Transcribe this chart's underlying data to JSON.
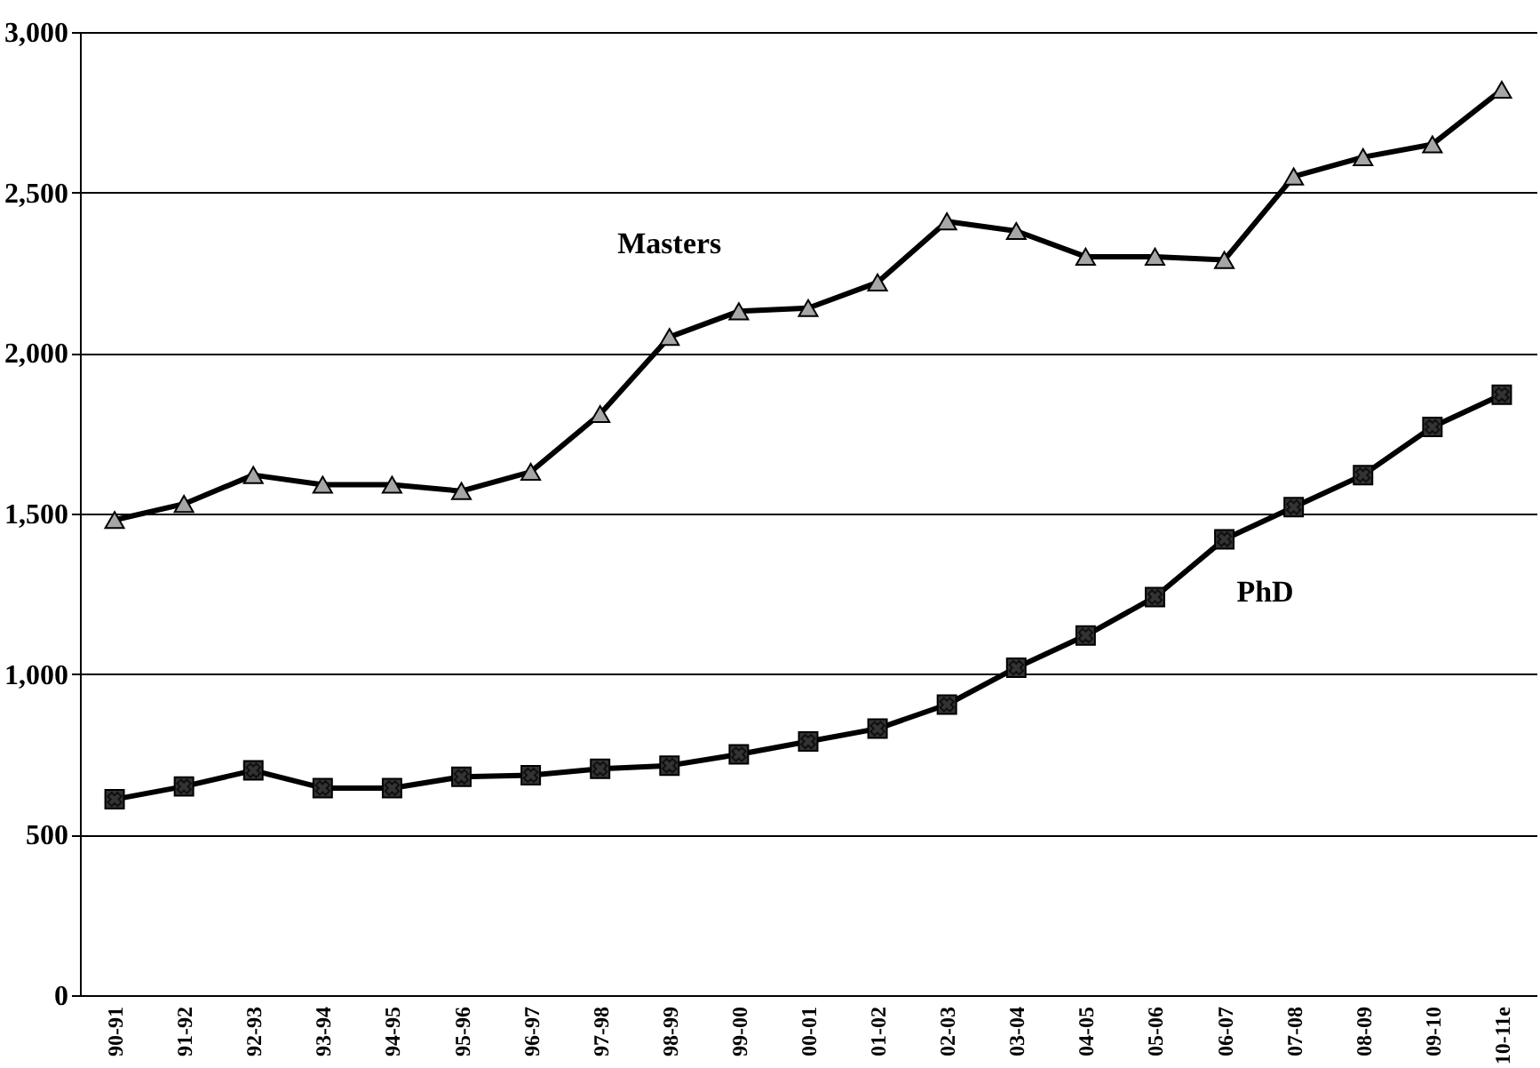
{
  "chart_data": {
    "type": "line",
    "categories": [
      "90-91",
      "91-92",
      "92-93",
      "93-94",
      "94-95",
      "95-96",
      "96-97",
      "97-98",
      "98-99",
      "99-00",
      "00-01",
      "01-02",
      "02-03",
      "03-04",
      "04-05",
      "05-06",
      "06-07",
      "07-08",
      "08-09",
      "09-10",
      "10-11e"
    ],
    "series": [
      {
        "name": "Masters",
        "color": "#a6a6a6",
        "marker": "triangle",
        "values": [
          1480,
          1530,
          1620,
          1590,
          1590,
          1570,
          1630,
          1810,
          2050,
          2130,
          2140,
          2220,
          2410,
          2380,
          2300,
          2300,
          2290,
          2550,
          2610,
          2650,
          2820
        ]
      },
      {
        "name": "PhD",
        "color": "#333333",
        "marker": "square",
        "values": [
          610,
          650,
          700,
          645,
          645,
          680,
          685,
          705,
          715,
          750,
          790,
          830,
          905,
          1020,
          1120,
          1240,
          1420,
          1520,
          1620,
          1770,
          1870
        ]
      }
    ],
    "ylim": [
      0,
      3000
    ],
    "yticks": [
      0,
      500,
      {
        "value": 1000,
        "label": "1,000"
      },
      {
        "value": 1500,
        "label": "1,500"
      },
      {
        "value": 2000,
        "label": "2,000"
      },
      {
        "value": 2500,
        "label": "2,500"
      },
      {
        "value": 3000,
        "label": "3,000"
      }
    ],
    "grid": "y",
    "line_style": "solid"
  }
}
